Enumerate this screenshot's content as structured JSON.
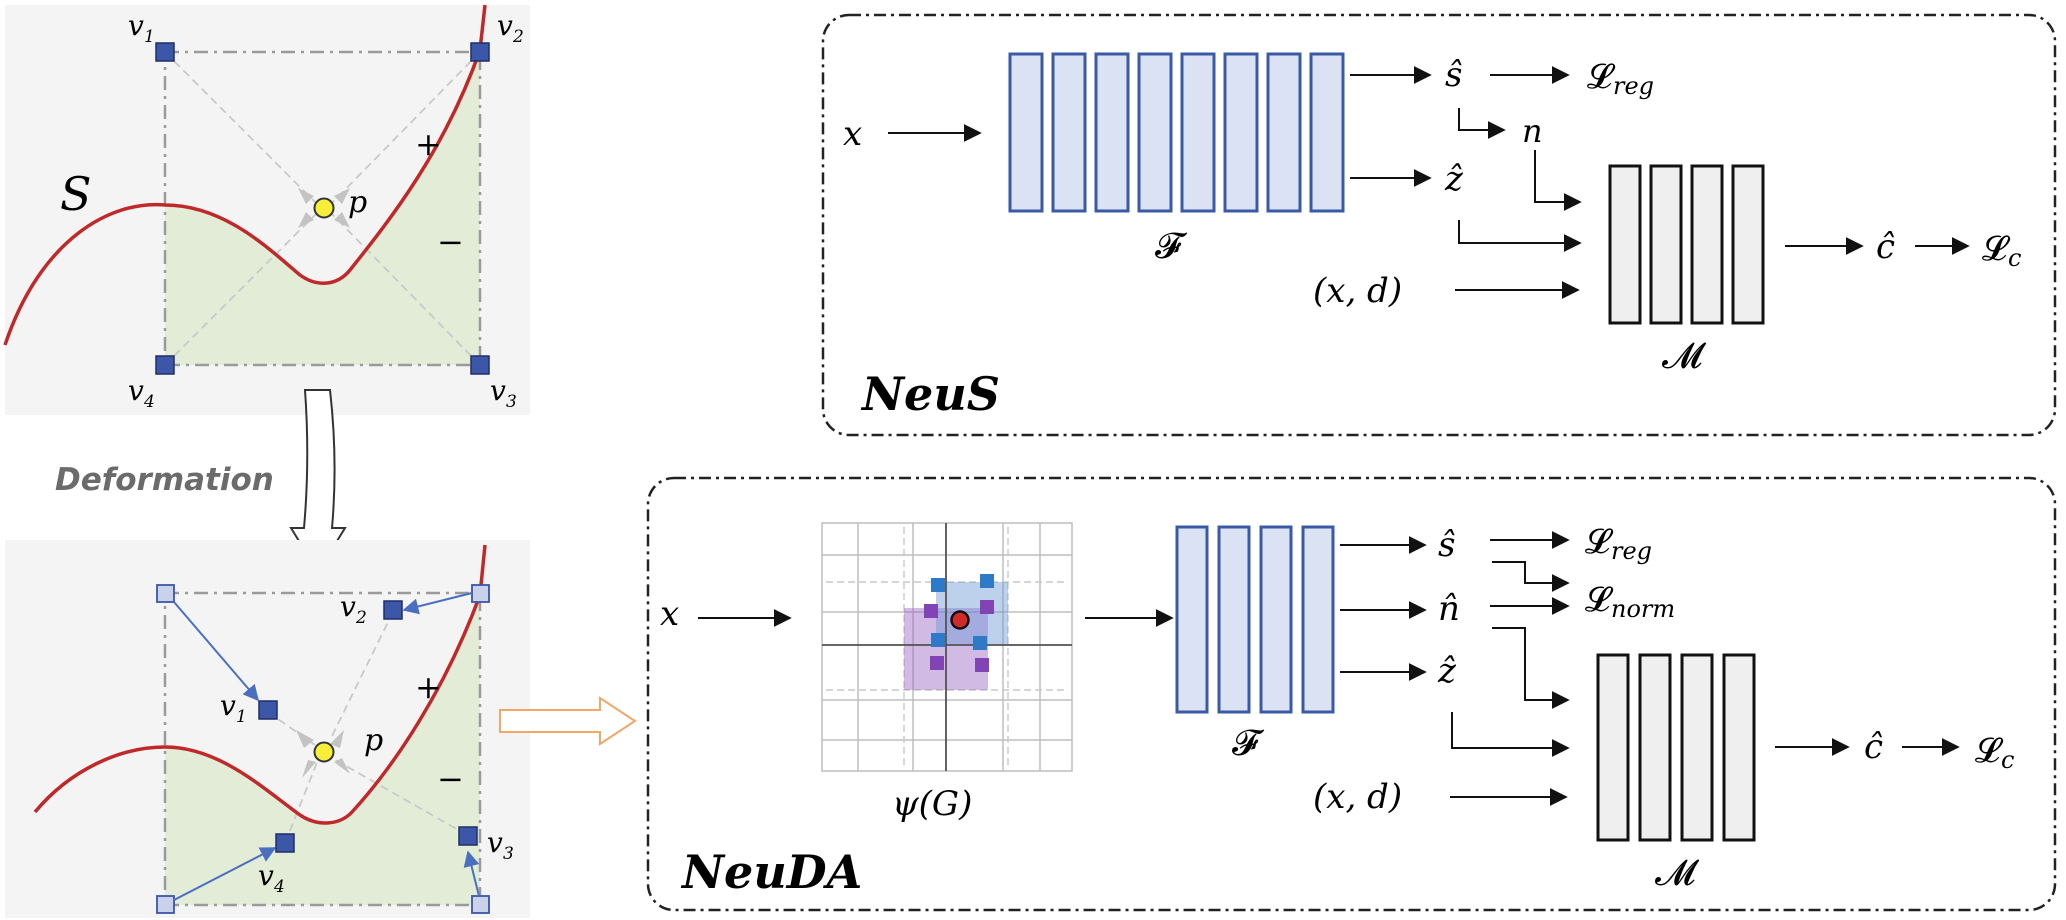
{
  "left_panel": {
    "curve_label": "S",
    "point_label": "p",
    "plus": "+",
    "minus": "−",
    "vertex_labels": [
      "v1",
      "v2",
      "v3",
      "v4"
    ],
    "vertex_subscripts": [
      "1",
      "2",
      "3",
      "4"
    ],
    "deformation_label": "Deformation"
  },
  "neus": {
    "title": "NeuS",
    "input": "x",
    "network_f": "𝓕",
    "network_m": "𝓜",
    "s_hat": "ŝ",
    "z_hat": "ẑ",
    "normal": "n",
    "view_input": "(x, d)",
    "c_hat": "ĉ",
    "loss_reg_base": "𝓛",
    "loss_reg_sub": "reg",
    "loss_c_base": "𝓛",
    "loss_c_sub": "c"
  },
  "neuda": {
    "title": "NeuDA",
    "input": "x",
    "grid_label": "ψ(G)",
    "network_f": "𝓕",
    "network_m": "𝓜",
    "s_hat": "ŝ",
    "n_hat": "n̂",
    "z_hat": "ẑ",
    "view_input": "(x, d)",
    "c_hat": "ĉ",
    "loss_reg_base": "𝓛",
    "loss_reg_sub": "reg",
    "loss_norm_base": "𝓛",
    "loss_norm_sub": "norm",
    "loss_c_base": "𝓛",
    "loss_c_sub": "c"
  },
  "colors": {
    "curve": "#c0282a",
    "fill_green": "#e2ecd6",
    "vertex_blue": "#3c56a8",
    "network_blue_fill": "#dbe2f3",
    "network_blue_stroke": "#3a5aa6",
    "network_gray_fill": "#efefef",
    "point_yellow": "#f7ee3a",
    "grid_purple": "#9a66c4",
    "grid_blue": "#2f7ac8",
    "orange_arrow": "#f2a766"
  }
}
